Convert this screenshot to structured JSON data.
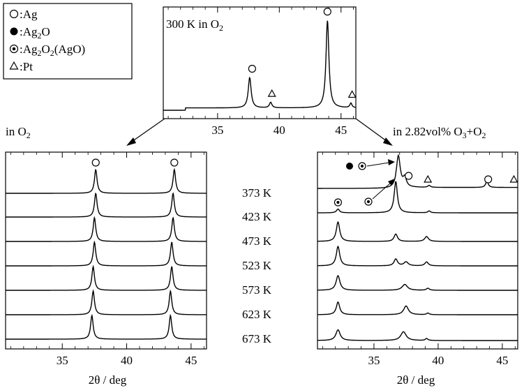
{
  "legend": {
    "items": [
      {
        "marker": "open-circle",
        "label": "Ag"
      },
      {
        "marker": "filled-circle",
        "label": "Ag",
        "sub": "2",
        "tail": "O"
      },
      {
        "marker": "double-circle",
        "label": "Ag",
        "sub": "2",
        "mid": "O",
        "sub2": "2",
        "tail": "(AgO)"
      },
      {
        "marker": "triangle",
        "label": "Pt"
      }
    ]
  },
  "chart_data": [
    {
      "id": "top",
      "type": "line",
      "title": "300 K in O",
      "title_sub": "2",
      "xlim": [
        30.6,
        46.2
      ],
      "xticks": [
        35,
        40,
        45
      ],
      "pattern": {
        "baseline": 0.0,
        "peaks": [
          {
            "x": 37.6,
            "h": 0.33,
            "w": 0.14
          },
          {
            "x": 39.3,
            "h": 0.06,
            "w": 0.12
          },
          {
            "x": 43.9,
            "h": 0.95,
            "w": 0.14
          },
          {
            "x": 45.8,
            "h": 0.05,
            "w": 0.1
          }
        ]
      },
      "markers": [
        {
          "x": 37.8,
          "symbol": "open-circle"
        },
        {
          "x": 39.4,
          "symbol": "triangle"
        },
        {
          "x": 43.9,
          "symbol": "open-circle"
        },
        {
          "x": 45.9,
          "symbol": "triangle"
        }
      ]
    },
    {
      "id": "left",
      "type": "line",
      "title": "in O",
      "title_sub": "2",
      "xlabel": "2θ / deg",
      "xlim": [
        30.6,
        46.2
      ],
      "xticks": [
        35,
        40,
        45
      ],
      "series": [
        {
          "name": "373 K",
          "peaks": [
            {
              "x": 37.6,
              "h": 1.0,
              "w": 0.12
            },
            {
              "x": 43.7,
              "h": 1.0,
              "w": 0.12
            }
          ]
        },
        {
          "name": "423 K",
          "peaks": [
            {
              "x": 37.6,
              "h": 1.0,
              "w": 0.12
            },
            {
              "x": 43.6,
              "h": 1.0,
              "w": 0.12
            }
          ]
        },
        {
          "name": "473 K",
          "peaks": [
            {
              "x": 37.5,
              "h": 1.0,
              "w": 0.12
            },
            {
              "x": 43.6,
              "h": 1.0,
              "w": 0.12
            }
          ]
        },
        {
          "name": "523 K",
          "peaks": [
            {
              "x": 37.5,
              "h": 1.0,
              "w": 0.12
            },
            {
              "x": 43.5,
              "h": 1.0,
              "w": 0.12
            }
          ]
        },
        {
          "name": "573 K",
          "peaks": [
            {
              "x": 37.4,
              "h": 1.0,
              "w": 0.12
            },
            {
              "x": 43.5,
              "h": 1.0,
              "w": 0.12
            }
          ]
        },
        {
          "name": "623 K",
          "peaks": [
            {
              "x": 37.4,
              "h": 1.0,
              "w": 0.12
            },
            {
              "x": 43.4,
              "h": 1.0,
              "w": 0.12
            }
          ]
        },
        {
          "name": "673 K",
          "peaks": [
            {
              "x": 37.3,
              "h": 1.0,
              "w": 0.12
            },
            {
              "x": 43.4,
              "h": 1.0,
              "w": 0.12
            }
          ]
        }
      ],
      "markers": [
        {
          "x": 37.6,
          "symbol": "open-circle"
        },
        {
          "x": 43.7,
          "symbol": "open-circle"
        }
      ]
    },
    {
      "id": "right",
      "type": "line",
      "title": "in 2.82vol% O",
      "title_sub": "3",
      "title_tail": "+O",
      "title_sub2": "2",
      "xlabel": "2θ / deg",
      "xlim": [
        30.6,
        46.2
      ],
      "xticks": [
        35,
        40,
        45
      ],
      "series": [
        {
          "name": "373 K",
          "peaks": [
            {
              "x": 36.9,
              "h": 1.0,
              "w": 0.18
            },
            {
              "x": 37.4,
              "h": 0.28,
              "w": 0.15
            },
            {
              "x": 39.3,
              "h": 0.06,
              "w": 0.12
            },
            {
              "x": 43.8,
              "h": 0.2,
              "w": 0.12
            }
          ]
        },
        {
          "name": "423 K",
          "peaks": [
            {
              "x": 32.2,
              "h": 0.12,
              "w": 0.14
            },
            {
              "x": 36.7,
              "h": 1.0,
              "w": 0.15
            },
            {
              "x": 39.3,
              "h": 0.06,
              "w": 0.12
            }
          ]
        },
        {
          "name": "473 K",
          "peaks": [
            {
              "x": 32.2,
              "h": 1.0,
              "w": 0.16
            },
            {
              "x": 36.7,
              "h": 0.38,
              "w": 0.16
            },
            {
              "x": 39.1,
              "h": 0.25,
              "w": 0.18
            }
          ]
        },
        {
          "name": "523 K",
          "peaks": [
            {
              "x": 32.2,
              "h": 1.0,
              "w": 0.16
            },
            {
              "x": 36.7,
              "h": 0.35,
              "w": 0.16
            },
            {
              "x": 37.5,
              "h": 0.2,
              "w": 0.2
            },
            {
              "x": 39.1,
              "h": 0.2,
              "w": 0.16
            }
          ]
        },
        {
          "name": "573 K",
          "peaks": [
            {
              "x": 32.2,
              "h": 0.75,
              "w": 0.18
            },
            {
              "x": 37.4,
              "h": 0.3,
              "w": 0.25
            },
            {
              "x": 39.2,
              "h": 0.1,
              "w": 0.14
            }
          ]
        },
        {
          "name": "623 K",
          "peaks": [
            {
              "x": 32.2,
              "h": 0.65,
              "w": 0.16
            },
            {
              "x": 37.5,
              "h": 0.45,
              "w": 0.22
            },
            {
              "x": 39.2,
              "h": 0.08,
              "w": 0.12
            }
          ]
        },
        {
          "name": "673 K",
          "peaks": [
            {
              "x": 32.2,
              "h": 0.55,
              "w": 0.2
            },
            {
              "x": 37.3,
              "h": 0.45,
              "w": 0.25
            },
            {
              "x": 39.1,
              "h": 0.1,
              "w": 0.12
            }
          ]
        }
      ],
      "markers": [
        {
          "x": 32.2,
          "symbol": "double-circle",
          "row": 1
        },
        {
          "x": 37.7,
          "symbol": "open-circle",
          "row": 0
        },
        {
          "x": 39.2,
          "symbol": "triangle",
          "row": 0
        },
        {
          "x": 43.9,
          "symbol": "open-circle",
          "row": 0
        },
        {
          "x": 45.9,
          "symbol": "triangle",
          "row": 0
        }
      ],
      "callouts": [
        {
          "symbols": [
            "filled-circle",
            "double-circle"
          ],
          "target_x": 36.9,
          "row": 0
        },
        {
          "symbol": "double-circle",
          "target_x": 36.7,
          "row": 1
        }
      ]
    }
  ]
}
